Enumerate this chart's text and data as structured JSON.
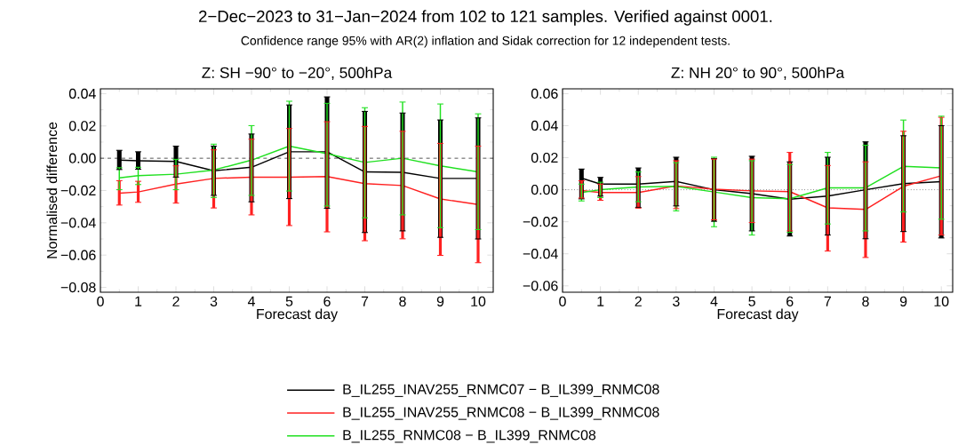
{
  "chart_data": [
    {
      "type": "line",
      "title": "Z: SH −90° to −20°, 500hPa",
      "xlabel": "Forecast day",
      "ylabel": "Normalised difference",
      "annotations": [
        "2−Dec−2023 to 31−Jan−2024 from 102 to 121 samples. Verified against 0001.",
        "Confidence range 95% with AR(2) inflation and Sidak correction for 12 independent tests."
      ],
      "x": [
        0.5,
        1,
        2,
        3,
        4,
        5,
        6,
        7,
        8,
        9,
        10
      ],
      "xlim": [
        0,
        10.4
      ],
      "xticks": [
        0,
        1,
        2,
        3,
        4,
        5,
        6,
        7,
        8,
        9,
        10
      ],
      "ylim": [
        -0.083,
        0.043
      ],
      "yticks": [
        {
          "value": -0.08,
          "label": "−0.08"
        },
        {
          "value": -0.06,
          "label": "−0.06"
        },
        {
          "value": -0.04,
          "label": "−0.04"
        },
        {
          "value": -0.02,
          "label": "−0.02"
        },
        {
          "value": 0,
          "label": "0.00"
        },
        {
          "value": 0.02,
          "label": "0.02"
        },
        {
          "value": 0.04,
          "label": "0.04"
        }
      ],
      "ref_lines": [
        {
          "axis": "y",
          "value": 0,
          "line_style": "dashed",
          "color": "#000000"
        }
      ],
      "legend": "bottom",
      "series": [
        {
          "name": "B_IL255_INAV255_RNMC07 − B_IL399_RNMC08",
          "color": "#000000",
          "values": [
            -0.0012,
            -0.0016,
            -0.002,
            -0.0078,
            -0.0056,
            0.004,
            0.004,
            -0.0085,
            -0.0087,
            -0.0125,
            -0.0125
          ],
          "errors": [
            [
              -0.007,
              0.0049
            ],
            [
              -0.0068,
              0.004
            ],
            [
              -0.0117,
              0.0075
            ],
            [
              -0.023,
              0.0075
            ],
            [
              -0.027,
              0.015
            ],
            [
              -0.025,
              0.033
            ],
            [
              -0.031,
              0.038
            ],
            [
              -0.046,
              0.029
            ],
            [
              -0.045,
              0.028
            ],
            [
              -0.049,
              0.0237
            ],
            [
              -0.05,
              0.025
            ]
          ]
        },
        {
          "name": "B_IL255_INAV255_RNMC08 − B_IL399_RNMC08",
          "color": "#ff2020",
          "values": [
            -0.0216,
            -0.0209,
            -0.016,
            -0.0125,
            -0.0117,
            -0.0117,
            -0.0113,
            -0.0157,
            -0.0169,
            -0.0252,
            -0.0287
          ],
          "errors": [
            [
              -0.029,
              -0.0139
            ],
            [
              -0.0273,
              -0.0143
            ],
            [
              -0.0278,
              -0.0047
            ],
            [
              -0.0308,
              0.0052
            ],
            [
              -0.0351,
              0.0118
            ],
            [
              -0.0417,
              0.0184
            ],
            [
              -0.0456,
              0.0226
            ],
            [
              -0.0511,
              0.0197
            ],
            [
              -0.0499,
              0.0167
            ],
            [
              -0.0602,
              0.0092
            ],
            [
              -0.0647,
              0.0075
            ]
          ]
        },
        {
          "name": "B_IL255_RNMC08 − B_IL399_RNMC08",
          "color": "#20e020",
          "values": [
            -0.0122,
            -0.0108,
            -0.0099,
            -0.0073,
            -0.0012,
            0.0075,
            0.0028,
            -0.0026,
            0,
            -0.0047,
            -0.0085
          ],
          "errors": [
            [
              -0.0195,
              -0.0059
            ],
            [
              -0.0163,
              -0.0056
            ],
            [
              -0.0195,
              -0.0007
            ],
            [
              -0.0243,
              0.0087
            ],
            [
              -0.023,
              0.0202
            ],
            [
              -0.0203,
              0.0353
            ],
            [
              -0.0296,
              0.034
            ],
            [
              -0.0369,
              0.0313
            ],
            [
              -0.0351,
              0.0348
            ],
            [
              -0.043,
              0.0336
            ],
            [
              -0.0442,
              0.0275
            ]
          ]
        }
      ]
    },
    {
      "type": "line",
      "title": "Z: NH 20° to 90°, 500hPa",
      "xlabel": "Forecast day",
      "x": [
        0.5,
        1,
        2,
        3,
        4,
        5,
        6,
        7,
        8,
        9,
        10
      ],
      "xlim": [
        0,
        10.3
      ],
      "xticks": [
        0,
        1,
        2,
        3,
        4,
        5,
        6,
        7,
        8,
        9,
        10
      ],
      "ylim": [
        -0.064,
        0.063
      ],
      "yticks": [
        {
          "value": -0.06,
          "label": "−0.06"
        },
        {
          "value": -0.04,
          "label": "−0.04"
        },
        {
          "value": -0.02,
          "label": "−0.02"
        },
        {
          "value": 0,
          "label": "0.00"
        },
        {
          "value": 0.02,
          "label": "0.02"
        },
        {
          "value": 0.04,
          "label": "0.04"
        },
        {
          "value": 0.06,
          "label": "0.06"
        }
      ],
      "ref_lines": [
        {
          "axis": "y",
          "value": 0,
          "line_style": "dotted",
          "color": "#000000"
        }
      ],
      "series": [
        {
          "color": "#000000",
          "values": [
            0.0073,
            0.0035,
            0.0035,
            0.0052,
            0,
            -0.0024,
            -0.0059,
            -0.004,
            0,
            0.0038,
            0.005
          ],
          "errors": [
            [
              -0.0057,
              0.0129
            ],
            [
              -0.004,
              0.0077
            ],
            [
              -0.011,
              0.0136
            ],
            [
              -0.0101,
              0.0203
            ],
            [
              -0.0197,
              0.0195
            ],
            [
              -0.0257,
              0.0209
            ],
            [
              -0.0289,
              0.0174
            ],
            [
              -0.0283,
              0.0203
            ],
            [
              -0.0306,
              0.0299
            ],
            [
              -0.0261,
              0.0337
            ],
            [
              -0.0301,
              0.04
            ]
          ]
        },
        {
          "color": "#ff2020",
          "values": [
            -0.0005,
            -0.0017,
            -0.0017,
            0.0024,
            0.0003,
            -0.0007,
            -0.0012,
            -0.0113,
            -0.0123,
            0.0021,
            0.0087
          ],
          "errors": [
            [
              -0.0052,
              0.0056
            ],
            [
              -0.0066,
              0.0035
            ],
            [
              -0.0115,
              0.0082
            ],
            [
              -0.0118,
              0.0181
            ],
            [
              -0.0188,
              0.0191
            ],
            [
              -0.0205,
              0.0191
            ],
            [
              -0.0257,
              0.0233
            ],
            [
              -0.0383,
              0.0151
            ],
            [
              -0.0423,
              0.0174
            ],
            [
              -0.0327,
              0.0365
            ],
            [
              -0.0283,
              0.0452
            ]
          ]
        },
        {
          "color": "#20e020",
          "values": [
            -0.0017,
            0,
            0.0017,
            0.0021,
            -0.0014,
            -0.0049,
            -0.0056,
            0.0012,
            0.0012,
            0.0146,
            0.0137
          ],
          "errors": [
            [
              -0.007,
              0.0035
            ],
            [
              -0.0049,
              0.0047
            ],
            [
              -0.0075,
              0.0111
            ],
            [
              -0.0132,
              0.0169
            ],
            [
              -0.0231,
              0.0203
            ],
            [
              -0.0283,
              0.0181
            ],
            [
              -0.0266,
              0.0157
            ],
            [
              -0.0214,
              0.0233
            ],
            [
              -0.0257,
              0.0278
            ],
            [
              -0.0139,
              0.0435
            ],
            [
              -0.0184,
              0.0459
            ]
          ]
        }
      ]
    }
  ]
}
